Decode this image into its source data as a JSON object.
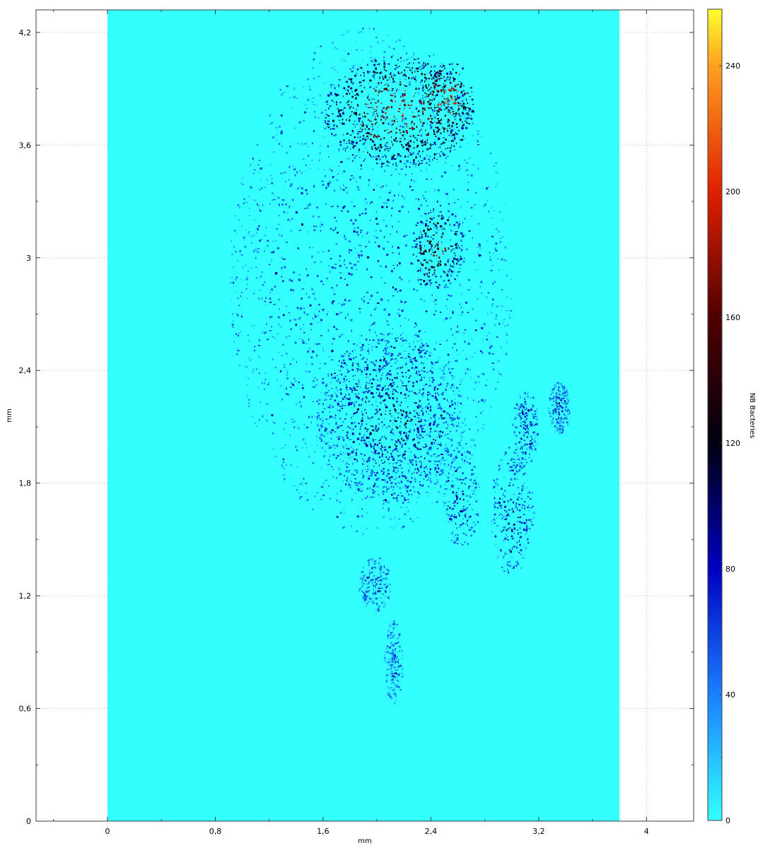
{
  "chart_data": {
    "type": "heatmap",
    "title": "",
    "xlabel": "mm",
    "ylabel": "mm",
    "xlim": [
      -0.53,
      4.35
    ],
    "ylim": [
      0,
      4.32
    ],
    "x_ticks": [
      {
        "value": 0,
        "label": "0"
      },
      {
        "value": 0.8,
        "label": "0,8"
      },
      {
        "value": 1.6,
        "label": "1,6"
      },
      {
        "value": 2.4,
        "label": "2,4"
      },
      {
        "value": 3.2,
        "label": "3,2"
      },
      {
        "value": 4.0,
        "label": "4"
      }
    ],
    "y_ticks": [
      {
        "value": 0,
        "label": "0"
      },
      {
        "value": 0.6,
        "label": "0,6"
      },
      {
        "value": 1.2,
        "label": "1,2"
      },
      {
        "value": 1.8,
        "label": "1,8"
      },
      {
        "value": 2.4,
        "label": "2,4"
      },
      {
        "value": 3.0,
        "label": "3"
      },
      {
        "value": 3.6,
        "label": "3,6"
      },
      {
        "value": 4.2,
        "label": "4,2"
      }
    ],
    "grid": true,
    "data_extent": {
      "x": [
        0,
        3.8
      ],
      "y": [
        0,
        4.32
      ]
    },
    "background_value": 0,
    "colorbar": {
      "label": "NB Bacteries",
      "range": [
        0,
        258
      ],
      "ticks": [
        {
          "value": 0,
          "label": "0"
        },
        {
          "value": 40,
          "label": "40"
        },
        {
          "value": 80,
          "label": "80"
        },
        {
          "value": 120,
          "label": "120"
        },
        {
          "value": 160,
          "label": "160"
        },
        {
          "value": 200,
          "label": "200"
        },
        {
          "value": 240,
          "label": "240"
        }
      ],
      "stops": [
        {
          "value": 0,
          "color": "#33ffff"
        },
        {
          "value": 40,
          "color": "#1a80ff"
        },
        {
          "value": 80,
          "color": "#0000c0"
        },
        {
          "value": 120,
          "color": "#000010"
        },
        {
          "value": 160,
          "color": "#500000"
        },
        {
          "value": 200,
          "color": "#e02000"
        },
        {
          "value": 240,
          "color": "#ffa020"
        },
        {
          "value": 258,
          "color": "#ffff30"
        }
      ]
    },
    "regions": [
      {
        "name": "main-colony",
        "cx": 1.95,
        "cy": 2.88,
        "rx": 1.05,
        "ry": 1.35,
        "mean_value": 75
      },
      {
        "name": "colony-top-core",
        "cx": 2.15,
        "cy": 3.78,
        "rx": 0.55,
        "ry": 0.3,
        "mean_value": 190
      },
      {
        "name": "colony-top-right-core",
        "cx": 2.52,
        "cy": 3.85,
        "rx": 0.2,
        "ry": 0.2,
        "mean_value": 215
      },
      {
        "name": "colony-mid-right",
        "cx": 2.45,
        "cy": 3.05,
        "rx": 0.2,
        "ry": 0.22,
        "mean_value": 170
      },
      {
        "name": "colony-lower-body",
        "cx": 2.1,
        "cy": 2.15,
        "rx": 0.55,
        "ry": 0.45,
        "mean_value": 110
      },
      {
        "name": "streak-right-1",
        "cx": 2.62,
        "cy": 1.72,
        "rx": 0.14,
        "ry": 0.28,
        "mean_value": 95
      },
      {
        "name": "streak-right-2",
        "cx": 3.0,
        "cy": 1.65,
        "rx": 0.16,
        "ry": 0.35,
        "mean_value": 90
      },
      {
        "name": "streak-right-3",
        "cx": 3.1,
        "cy": 2.1,
        "rx": 0.1,
        "ry": 0.2,
        "mean_value": 85
      },
      {
        "name": "streak-right-4",
        "cx": 3.35,
        "cy": 2.2,
        "rx": 0.08,
        "ry": 0.14,
        "mean_value": 85
      },
      {
        "name": "lower-plume-1",
        "cx": 1.98,
        "cy": 1.26,
        "rx": 0.12,
        "ry": 0.15,
        "mean_value": 70
      },
      {
        "name": "lower-plume-2",
        "cx": 2.12,
        "cy": 0.85,
        "rx": 0.07,
        "ry": 0.22,
        "mean_value": 60
      }
    ]
  }
}
